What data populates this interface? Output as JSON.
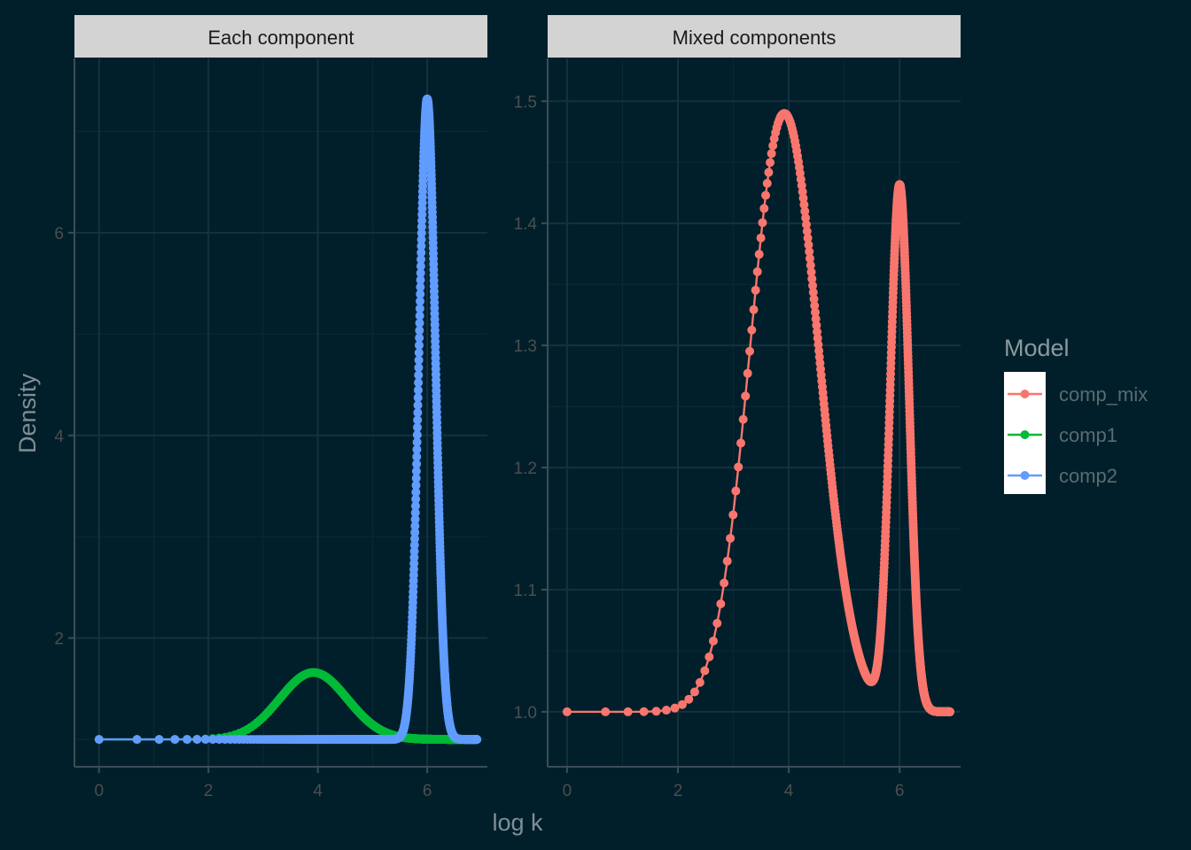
{
  "chart_data": {
    "type": "line",
    "xlabel": "log k",
    "ylabel": "Density",
    "legend": {
      "title": "Model",
      "placement": "right",
      "entries": [
        {
          "name": "comp_mix",
          "color": "#F8766D"
        },
        {
          "name": "comp1",
          "color": "#00BA38"
        },
        {
          "name": "comp2",
          "color": "#619CFF"
        }
      ]
    },
    "colors": {
      "background": "#011f2b",
      "grid_major": "#14323d",
      "grid_minor": "#0b2833",
      "axis": "#3a4e55",
      "strip": "#d3d3d3"
    },
    "panels": [
      {
        "strip_label": "Each component",
        "xlim": [
          -0.45,
          7.1
        ],
        "ylim": [
          0.73,
          7.72
        ],
        "x_ticks": [
          0,
          2,
          4,
          6
        ],
        "x_tick_labels": [
          "0",
          "2",
          "4",
          "6"
        ],
        "y_ticks": [
          2,
          4,
          6
        ],
        "y_tick_labels": [
          "2",
          "4",
          "6"
        ],
        "grid": true,
        "series": [
          {
            "name": "comp1",
            "distribution": "normal",
            "mean": 3.92,
            "sd": 0.62,
            "baseline": 1.0,
            "peak": 1.66,
            "x_range": [
              0,
              6.91
            ]
          },
          {
            "name": "comp2",
            "distribution": "normal",
            "mean": 6.0,
            "sd": 0.15,
            "baseline": 1.0,
            "peak": 7.32,
            "x_range": [
              0,
              6.91
            ]
          }
        ]
      },
      {
        "strip_label": "Mixed components",
        "xlim": [
          -0.35,
          7.1
        ],
        "ylim": [
          0.955,
          1.535
        ],
        "x_ticks": [
          0,
          2,
          4,
          6
        ],
        "x_tick_labels": [
          "0",
          "2",
          "4",
          "6"
        ],
        "y_ticks": [
          1.0,
          1.1,
          1.2,
          1.3,
          1.4,
          1.5
        ],
        "y_tick_labels": [
          "1.0",
          "1.1",
          "1.2",
          "1.3",
          "1.4",
          "1.5"
        ],
        "grid": true,
        "series": [
          {
            "name": "comp_mix",
            "distribution": "mixture",
            "components": [
              {
                "mean": 3.92,
                "sd": 0.62,
                "amplitude": 0.49
              },
              {
                "mean": 6.0,
                "sd": 0.17,
                "amplitude": 0.43
              }
            ],
            "baseline": 1.0,
            "x_range": [
              0,
              6.91
            ]
          }
        ]
      }
    ]
  }
}
